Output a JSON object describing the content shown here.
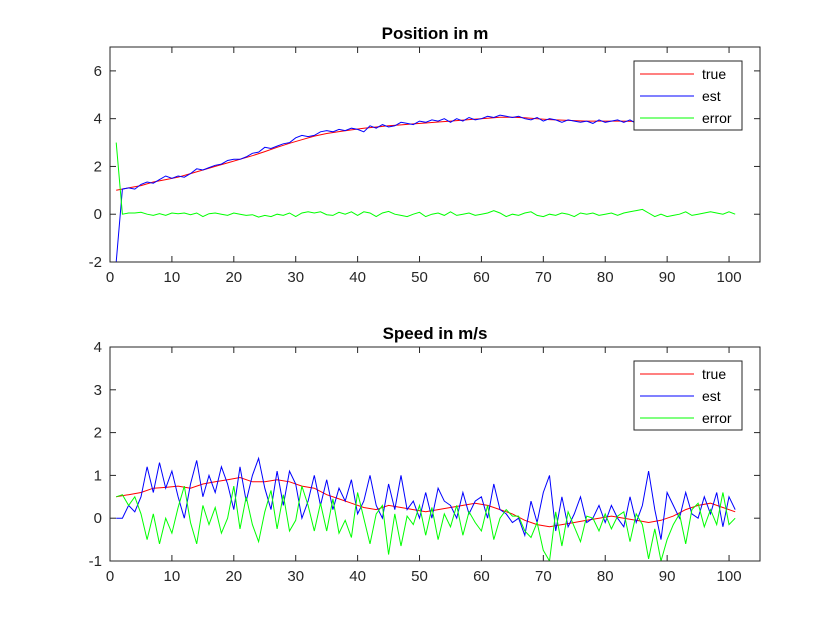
{
  "chart_data": [
    {
      "type": "line",
      "title": "Position in m",
      "xlim": [
        0,
        105
      ],
      "ylim": [
        -2,
        7
      ],
      "xticks": [
        0,
        10,
        20,
        30,
        40,
        50,
        60,
        70,
        80,
        90,
        100
      ],
      "yticks": [
        -2,
        0,
        2,
        4,
        6
      ],
      "legend_position": "top-right",
      "grid": false,
      "series": [
        {
          "name": "true",
          "color": "#ff0000",
          "x": [
            1,
            3,
            5,
            7,
            9,
            11,
            13,
            15,
            17,
            19,
            21,
            23,
            25,
            27,
            29,
            31,
            33,
            35,
            37,
            39,
            41,
            43,
            45,
            47,
            49,
            51,
            53,
            55,
            57,
            59,
            61,
            63,
            65,
            67,
            69,
            71,
            73,
            75,
            77,
            79,
            81,
            83,
            85
          ],
          "y": [
            1.0,
            1.1,
            1.2,
            1.35,
            1.45,
            1.55,
            1.7,
            1.85,
            2.0,
            2.15,
            2.3,
            2.45,
            2.62,
            2.8,
            2.97,
            3.12,
            3.27,
            3.38,
            3.46,
            3.53,
            3.6,
            3.65,
            3.7,
            3.74,
            3.78,
            3.82,
            3.86,
            3.9,
            3.94,
            3.98,
            4.02,
            4.06,
            4.06,
            4.04,
            4.0,
            3.96,
            3.94,
            3.92,
            3.9,
            3.9,
            3.9,
            3.9,
            3.88
          ]
        },
        {
          "name": "est",
          "color": "#0000ff",
          "x": [
            1,
            2,
            3,
            4,
            5,
            6,
            7,
            8,
            9,
            10,
            11,
            12,
            13,
            14,
            15,
            16,
            17,
            18,
            19,
            20,
            21,
            22,
            23,
            24,
            25,
            26,
            27,
            28,
            29,
            30,
            31,
            32,
            33,
            34,
            35,
            36,
            37,
            38,
            39,
            40,
            41,
            42,
            43,
            44,
            45,
            46,
            47,
            48,
            49,
            50,
            51,
            52,
            53,
            54,
            55,
            56,
            57,
            58,
            59,
            60,
            61,
            62,
            63,
            64,
            65,
            66,
            67,
            68,
            69,
            70,
            71,
            72,
            73,
            74,
            75,
            76,
            77,
            78,
            79,
            80,
            81,
            82,
            83,
            84,
            85
          ],
          "y": [
            -2.0,
            1.05,
            1.1,
            1.05,
            1.25,
            1.35,
            1.3,
            1.45,
            1.6,
            1.5,
            1.6,
            1.55,
            1.7,
            1.9,
            1.85,
            1.95,
            2.05,
            2.1,
            2.25,
            2.3,
            2.3,
            2.4,
            2.55,
            2.6,
            2.8,
            2.75,
            2.85,
            2.95,
            3.0,
            3.2,
            3.3,
            3.25,
            3.3,
            3.45,
            3.5,
            3.45,
            3.55,
            3.5,
            3.6,
            3.55,
            3.45,
            3.7,
            3.6,
            3.75,
            3.65,
            3.7,
            3.85,
            3.8,
            3.75,
            3.9,
            3.85,
            3.95,
            3.9,
            4.0,
            3.85,
            4.0,
            3.9,
            4.05,
            3.95,
            4.0,
            4.1,
            4.05,
            4.15,
            4.1,
            4.05,
            4.1,
            4.0,
            3.95,
            4.05,
            3.9,
            4.0,
            3.95,
            3.85,
            3.95,
            3.9,
            3.85,
            3.9,
            3.8,
            3.95,
            3.85,
            3.9,
            3.95,
            3.85,
            3.95,
            3.8
          ]
        },
        {
          "name": "error",
          "color": "#00ff00",
          "x": [
            1,
            2,
            3,
            4,
            5,
            6,
            7,
            8,
            9,
            10,
            11,
            12,
            13,
            14,
            15,
            16,
            17,
            18,
            19,
            20,
            21,
            22,
            23,
            24,
            25,
            26,
            27,
            28,
            29,
            30,
            31,
            32,
            33,
            34,
            35,
            36,
            37,
            38,
            39,
            40,
            41,
            42,
            43,
            44,
            45,
            46,
            47,
            48,
            49,
            50,
            51,
            52,
            53,
            54,
            55,
            56,
            57,
            58,
            59,
            60,
            61,
            62,
            63,
            64,
            65,
            66,
            67,
            68,
            69,
            70,
            71,
            72,
            73,
            74,
            75,
            76,
            77,
            78,
            79,
            80,
            81,
            82,
            83,
            84,
            85,
            86,
            87,
            88,
            89,
            90,
            91,
            92,
            93,
            94,
            95,
            96,
            97,
            98,
            99,
            100,
            101
          ],
          "y": [
            3.0,
            0.0,
            0.05,
            0.05,
            0.08,
            0.0,
            -0.05,
            0.02,
            -0.05,
            0.05,
            0.02,
            0.05,
            -0.02,
            0.05,
            -0.1,
            0.02,
            0.05,
            0.0,
            -0.05,
            0.05,
            0.0,
            -0.05,
            -0.02,
            -0.12,
            -0.05,
            -0.1,
            0.0,
            -0.05,
            0.05,
            -0.1,
            0.05,
            0.1,
            0.05,
            0.1,
            -0.02,
            -0.05,
            0.08,
            0.0,
            0.1,
            -0.05,
            0.1,
            0.05,
            -0.1,
            0.05,
            0.12,
            0.0,
            -0.05,
            -0.1,
            0.0,
            0.08,
            -0.1,
            0.0,
            0.05,
            -0.05,
            0.1,
            -0.05,
            0.0,
            0.05,
            -0.05,
            0.0,
            0.05,
            0.15,
            0.05,
            -0.1,
            0.0,
            -0.05,
            0.05,
            0.1,
            -0.05,
            -0.1,
            0.0,
            -0.05,
            0.05,
            0.0,
            -0.1,
            0.05,
            0.0,
            0.05,
            -0.05,
            0.0,
            0.05,
            -0.05,
            0.05,
            0.1,
            0.15,
            0.2,
            0.05,
            -0.1,
            0.0,
            -0.1,
            -0.05,
            0.0,
            0.1,
            -0.05,
            0.0,
            0.05,
            0.1,
            0.05,
            0.0,
            0.1,
            0.0
          ]
        }
      ]
    },
    {
      "type": "line",
      "title": "Speed in m/s",
      "xlim": [
        0,
        105
      ],
      "ylim": [
        -1,
        4
      ],
      "xticks": [
        0,
        10,
        20,
        30,
        40,
        50,
        60,
        70,
        80,
        90,
        100
      ],
      "yticks": [
        -1,
        0,
        1,
        2,
        3,
        4
      ],
      "legend_position": "top-right",
      "grid": false,
      "series": [
        {
          "name": "true",
          "color": "#ff0000",
          "x": [
            1,
            3,
            5,
            7,
            9,
            11,
            13,
            15,
            17,
            19,
            21,
            23,
            25,
            27,
            29,
            31,
            33,
            35,
            37,
            39,
            41,
            43,
            45,
            47,
            49,
            51,
            53,
            55,
            57,
            59,
            61,
            63,
            65,
            67,
            69,
            71,
            73,
            75,
            77,
            79,
            81,
            83,
            85,
            87,
            89,
            91,
            93,
            95,
            97,
            99,
            101
          ],
          "y": [
            0.5,
            0.55,
            0.6,
            0.7,
            0.72,
            0.75,
            0.7,
            0.8,
            0.85,
            0.9,
            0.95,
            0.85,
            0.85,
            0.9,
            0.85,
            0.75,
            0.7,
            0.55,
            0.45,
            0.35,
            0.25,
            0.2,
            0.3,
            0.25,
            0.2,
            0.15,
            0.2,
            0.25,
            0.3,
            0.35,
            0.3,
            0.2,
            0.1,
            -0.05,
            -0.15,
            -0.2,
            -0.15,
            -0.1,
            -0.05,
            0.0,
            0.05,
            0.0,
            -0.05,
            -0.1,
            -0.05,
            0.05,
            0.2,
            0.3,
            0.35,
            0.25,
            0.15
          ]
        },
        {
          "name": "est",
          "color": "#0000ff",
          "x": [
            1,
            2,
            3,
            4,
            5,
            6,
            7,
            8,
            9,
            10,
            11,
            12,
            13,
            14,
            15,
            16,
            17,
            18,
            19,
            20,
            21,
            22,
            23,
            24,
            25,
            26,
            27,
            28,
            29,
            30,
            31,
            32,
            33,
            34,
            35,
            36,
            37,
            38,
            39,
            40,
            41,
            42,
            43,
            44,
            45,
            46,
            47,
            48,
            49,
            50,
            51,
            52,
            53,
            54,
            55,
            56,
            57,
            58,
            59,
            60,
            61,
            62,
            63,
            64,
            65,
            66,
            67,
            68,
            69,
            70,
            71,
            72,
            73,
            74,
            75,
            76,
            77,
            78,
            79,
            80,
            81,
            82,
            83,
            84,
            85,
            86,
            87,
            88,
            89,
            90,
            91,
            92,
            93,
            94,
            95,
            96,
            97,
            98,
            99,
            100,
            101
          ],
          "y": [
            0.0,
            0.0,
            0.3,
            0.15,
            0.5,
            1.2,
            0.6,
            1.3,
            0.7,
            1.1,
            0.5,
            0.0,
            0.8,
            1.35,
            0.5,
            1.0,
            0.6,
            1.2,
            0.8,
            0.2,
            1.2,
            0.4,
            1.0,
            1.4,
            0.7,
            0.2,
            1.1,
            0.3,
            1.1,
            0.8,
            0.0,
            0.4,
            1.0,
            0.3,
            0.9,
            0.2,
            0.7,
            0.4,
            0.9,
            0.1,
            0.4,
            1.0,
            0.3,
            0.0,
            0.8,
            0.2,
            1.0,
            0.2,
            0.4,
            0.0,
            0.6,
            0.0,
            0.7,
            0.4,
            0.3,
            0.0,
            0.6,
            0.1,
            0.4,
            0.5,
            0.0,
            0.8,
            0.2,
            0.1,
            -0.1,
            0.0,
            -0.4,
            0.4,
            -0.1,
            0.6,
            1.0,
            -0.3,
            0.5,
            -0.2,
            0.1,
            0.5,
            -0.1,
            0.0,
            0.3,
            -0.1,
            0.3,
            0.0,
            -0.2,
            0.5,
            -0.1,
            0.3,
            1.1,
            0.2,
            -0.5,
            0.6,
            0.3,
            0.0,
            0.6,
            0.1,
            0.0,
            0.5,
            0.1,
            0.6,
            -0.2,
            0.5,
            0.2
          ]
        },
        {
          "name": "error",
          "color": "#00ff00",
          "x": [
            1,
            2,
            3,
            4,
            5,
            6,
            7,
            8,
            9,
            10,
            11,
            12,
            13,
            14,
            15,
            16,
            17,
            18,
            19,
            20,
            21,
            22,
            23,
            24,
            25,
            26,
            27,
            28,
            29,
            30,
            31,
            32,
            33,
            34,
            35,
            36,
            37,
            38,
            39,
            40,
            41,
            42,
            43,
            44,
            45,
            46,
            47,
            48,
            49,
            50,
            51,
            52,
            53,
            54,
            55,
            56,
            57,
            58,
            59,
            60,
            61,
            62,
            63,
            64,
            65,
            66,
            67,
            68,
            69,
            70,
            71,
            72,
            73,
            74,
            75,
            76,
            77,
            78,
            79,
            80,
            81,
            82,
            83,
            84,
            85,
            86,
            87,
            88,
            89,
            90,
            91,
            92,
            93,
            94,
            95,
            96,
            97,
            98,
            99,
            100,
            101
          ],
          "y": [
            0.5,
            0.55,
            0.3,
            0.5,
            0.1,
            -0.5,
            0.1,
            -0.6,
            0.0,
            -0.35,
            0.25,
            0.75,
            -0.1,
            -0.6,
            0.3,
            -0.15,
            0.25,
            -0.35,
            0.0,
            0.75,
            -0.25,
            0.5,
            -0.15,
            -0.55,
            0.15,
            0.65,
            -0.25,
            0.55,
            -0.3,
            -0.05,
            0.75,
            0.3,
            -0.3,
            0.35,
            -0.3,
            0.45,
            -0.35,
            -0.05,
            -0.45,
            0.6,
            0.0,
            -0.6,
            0.1,
            0.3,
            -0.85,
            0.1,
            -0.65,
            0.05,
            -0.15,
            0.3,
            -0.4,
            0.25,
            -0.5,
            0.1,
            -0.2,
            0.3,
            -0.4,
            0.15,
            -0.1,
            -0.3,
            0.3,
            -0.5,
            0.0,
            0.2,
            0.05,
            0.05,
            -0.3,
            -0.45,
            -0.1,
            -0.75,
            -1.0,
            0.15,
            -0.65,
            0.15,
            -0.2,
            -0.55,
            0.05,
            0.0,
            -0.3,
            0.1,
            -0.25,
            0.05,
            0.15,
            -0.55,
            0.1,
            -0.15,
            -0.95,
            -0.25,
            -1.0,
            -0.5,
            -0.15,
            0.1,
            -0.6,
            0.2,
            0.35,
            -0.2,
            0.2,
            -0.15,
            0.6,
            -0.15,
            0.0
          ]
        }
      ]
    }
  ]
}
